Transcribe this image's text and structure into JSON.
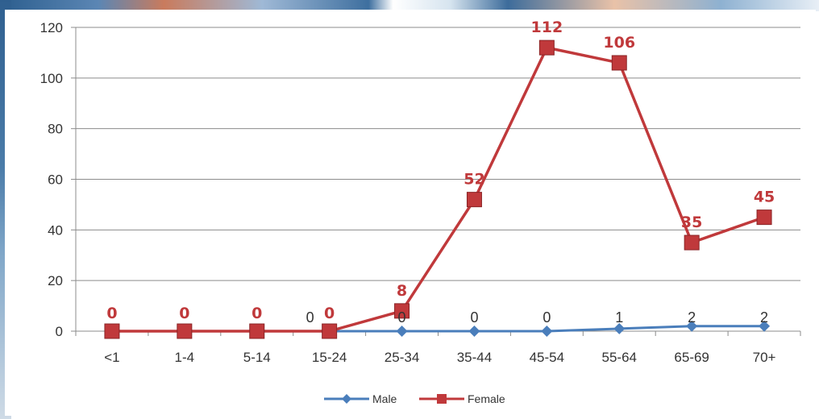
{
  "chart_data": {
    "type": "line",
    "categories": [
      "<1",
      "1-4",
      "5-14",
      "15-24",
      "25-34",
      "35-44",
      "45-54",
      "55-64",
      "65-69",
      "70+"
    ],
    "ylim": [
      0,
      120
    ],
    "yticks": [
      0,
      20,
      40,
      60,
      80,
      100,
      120
    ],
    "grid": true,
    "legend_placement": "bottom",
    "series": [
      {
        "name": "Male",
        "color": "#4a7ebb",
        "marker": "diamond",
        "values": [
          0,
          0,
          0,
          0,
          0,
          0,
          0,
          1,
          2,
          2
        ],
        "data_labels": [
          "",
          "",
          "",
          "0",
          "0",
          "0",
          "0",
          "1",
          "2",
          "2"
        ]
      },
      {
        "name": "Female",
        "color": "#c0393b",
        "marker": "square",
        "values": [
          0,
          0,
          0,
          0,
          8,
          52,
          112,
          106,
          35,
          45
        ],
        "data_labels": [
          "0",
          "0",
          "0",
          "0",
          "8",
          "52",
          "112",
          "106",
          "35",
          "45"
        ]
      }
    ]
  }
}
